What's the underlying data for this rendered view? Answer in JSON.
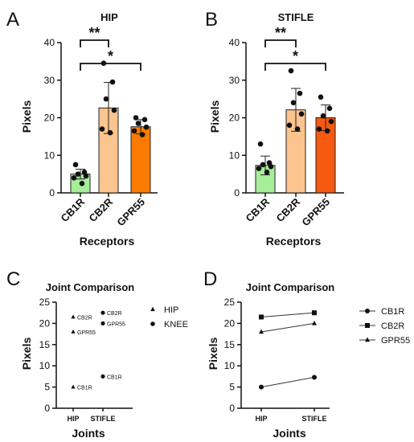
{
  "figure": {
    "panel_letters": [
      "A",
      "B",
      "C",
      "D"
    ]
  },
  "colors": {
    "cb1r": "#a6ee9a",
    "cb2r": "#fcc48f",
    "gpr55_a": "#fb7a00",
    "gpr55_b": "#f55a10",
    "axis": "#111111"
  },
  "chart_data": [
    {
      "panel": "A",
      "type": "bar",
      "title": "HIP",
      "xlabel": "Receptors",
      "ylabel": "Pixels",
      "ylim": [
        0,
        40
      ],
      "yticks": [
        0,
        10,
        20,
        30,
        40
      ],
      "categories": [
        "CB1R",
        "CB2R",
        "GPR55"
      ],
      "values": [
        5.0,
        22.6,
        17.6
      ],
      "sd": [
        1.3,
        6.8,
        1.9
      ],
      "points": [
        [
          7.5,
          5.5,
          5.0,
          4.5,
          4.0,
          2.5
        ],
        [
          34.5,
          29.5,
          25.0,
          22.0,
          17.0,
          16.0
        ],
        [
          20.0,
          19.5,
          18.5,
          17.5,
          16.5,
          15.5
        ]
      ],
      "significance": [
        {
          "from": "CB1R",
          "to": "CB2R",
          "label": "**"
        },
        {
          "from": "CB1R",
          "to": "GPR55",
          "label": "*"
        }
      ]
    },
    {
      "panel": "B",
      "type": "bar",
      "title": "STIFLE",
      "xlabel": "Receptors",
      "ylabel": "Pixels",
      "ylim": [
        0,
        40
      ],
      "yticks": [
        0,
        10,
        20,
        30,
        40
      ],
      "categories": [
        "CB1R",
        "CB2R",
        "GPR55"
      ],
      "values": [
        7.3,
        22.1,
        20.0
      ],
      "sd": [
        2.5,
        5.7,
        3.4
      ],
      "points": [
        [
          13.0,
          8.0,
          7.5,
          7.0,
          6.5,
          5.5
        ],
        [
          32.5,
          26.5,
          24.0,
          21.0,
          18.0,
          17.0
        ],
        [
          25.5,
          22.5,
          20.5,
          19.0,
          17.0,
          16.5
        ]
      ],
      "significance": [
        {
          "from": "CB1R",
          "to": "CB2R",
          "label": "**"
        },
        {
          "from": "CB1R",
          "to": "GPR55",
          "label": "*"
        }
      ]
    },
    {
      "panel": "C",
      "type": "scatter",
      "title": "Joint Comparison",
      "xlabel": "Joints",
      "ylabel": "Pixels",
      "ylim": [
        0,
        25
      ],
      "yticks": [
        0,
        5,
        10,
        15,
        20,
        25
      ],
      "x": [
        "HIP",
        "STIFLE"
      ],
      "legend": [
        {
          "name": "HIP",
          "marker": "triangle"
        },
        {
          "name": "KNEE",
          "marker": "circle"
        }
      ],
      "series": [
        {
          "name": "HIP",
          "marker": "triangle",
          "x": "HIP",
          "points": [
            {
              "label": "CB2R",
              "y": 21.5
            },
            {
              "label": "GPR55",
              "y": 18.0
            },
            {
              "label": "CB1R",
              "y": 5.0
            }
          ]
        },
        {
          "name": "KNEE",
          "marker": "circle",
          "x": "STIFLE",
          "points": [
            {
              "label": "CB2R",
              "y": 22.5
            },
            {
              "label": "GPR55",
              "y": 20.0
            },
            {
              "label": "CB1R",
              "y": 7.5
            }
          ]
        }
      ]
    },
    {
      "panel": "D",
      "type": "line",
      "title": "Joint Comparison",
      "xlabel": "Joints",
      "ylabel": "Pixels",
      "ylim": [
        0,
        25
      ],
      "yticks": [
        0,
        5,
        10,
        15,
        20,
        25
      ],
      "x": [
        "HIP",
        "STIFLE"
      ],
      "legend_placement": "right",
      "series": [
        {
          "name": "CB1R",
          "marker": "circle",
          "values": [
            5.0,
            7.3
          ]
        },
        {
          "name": "CB2R",
          "marker": "square",
          "values": [
            21.5,
            22.5
          ]
        },
        {
          "name": "GPR55",
          "marker": "triangle",
          "values": [
            18.0,
            20.0
          ]
        }
      ]
    }
  ]
}
